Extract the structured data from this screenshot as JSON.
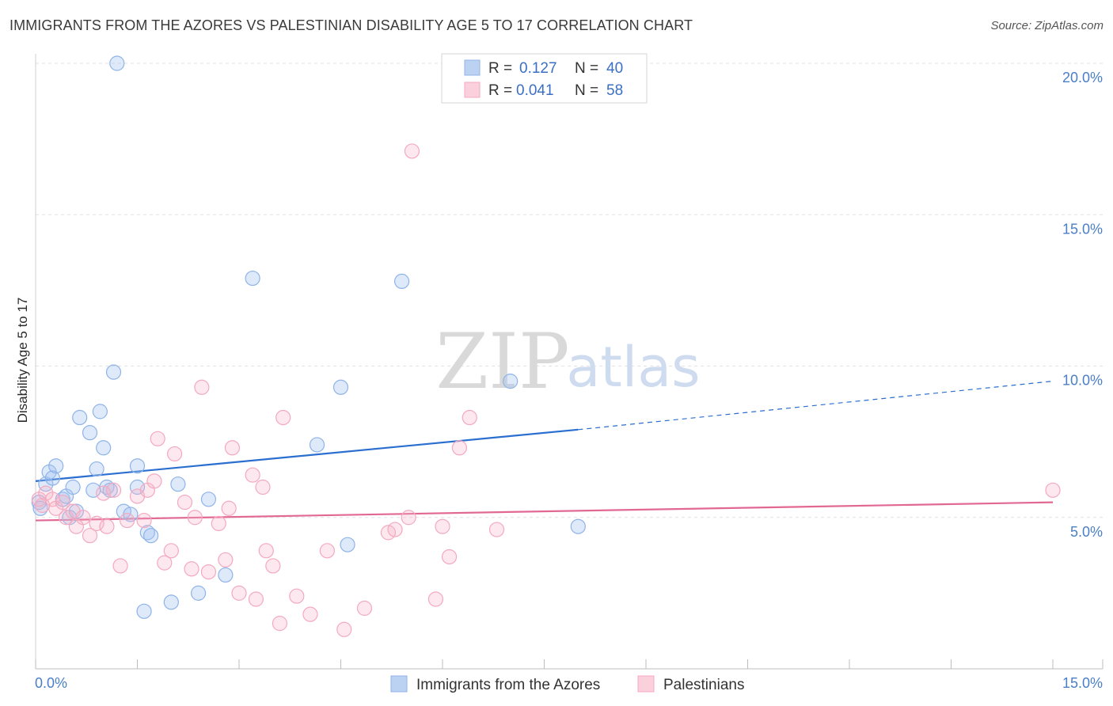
{
  "title": "IMMIGRANTS FROM THE AZORES VS PALESTINIAN DISABILITY AGE 5 TO 17 CORRELATION CHART",
  "source": "Source: ZipAtlas.com",
  "watermark": {
    "zip": "ZIP",
    "atlas": "atlas"
  },
  "colors": {
    "blue": "#8fb3e8",
    "blue_line": "#2a6ed0",
    "pink": "#f4a9c0",
    "pink_line": "#e26894",
    "tick": "#4a7fc6"
  },
  "chart_data": {
    "type": "scatter",
    "title": "IMMIGRANTS FROM THE AZORES VS PALESTINIAN DISABILITY AGE 5 TO 17 CORRELATION CHART",
    "xlabel": "",
    "ylabel": "Disability Age 5 to 17",
    "xlim": [
      0,
      15
    ],
    "ylim": [
      0,
      20
    ],
    "x_tick_labels": [
      "0.0%",
      "15.0%"
    ],
    "y_ticks": [
      5,
      10,
      15,
      20
    ],
    "y_tick_labels": [
      "5.0%",
      "10.0%",
      "15.0%",
      "20.0%"
    ],
    "legend": {
      "r_label": "R =",
      "n_label": "N =",
      "rows": [
        {
          "r": "0.127",
          "n": "40",
          "color": "blue"
        },
        {
          "r": "0.041",
          "n": "58",
          "color": "pink"
        }
      ]
    },
    "series": [
      {
        "name": "Immigrants from the Azores",
        "color": "blue",
        "trend": {
          "x0": 0,
          "y0": 6.2,
          "x1": 8.0,
          "y1": 7.9,
          "dash_to_x": 15,
          "dash_to_y": 9.5
        },
        "points": [
          [
            0.05,
            5.5
          ],
          [
            0.07,
            5.3
          ],
          [
            0.15,
            6.1
          ],
          [
            0.2,
            6.5
          ],
          [
            0.25,
            6.3
          ],
          [
            0.3,
            6.7
          ],
          [
            0.4,
            5.6
          ],
          [
            0.45,
            5.7
          ],
          [
            0.5,
            5.0
          ],
          [
            0.55,
            6.0
          ],
          [
            0.6,
            5.2
          ],
          [
            0.65,
            8.3
          ],
          [
            0.8,
            7.8
          ],
          [
            0.85,
            5.9
          ],
          [
            0.9,
            6.6
          ],
          [
            0.95,
            8.5
          ],
          [
            1.0,
            7.3
          ],
          [
            1.05,
            6.0
          ],
          [
            1.1,
            5.9
          ],
          [
            1.15,
            9.8
          ],
          [
            1.2,
            20.0
          ],
          [
            1.3,
            5.2
          ],
          [
            1.4,
            5.1
          ],
          [
            1.5,
            6.7
          ],
          [
            1.5,
            6.0
          ],
          [
            1.6,
            1.9
          ],
          [
            1.65,
            4.5
          ],
          [
            1.7,
            4.4
          ],
          [
            2.0,
            2.2
          ],
          [
            2.1,
            6.1
          ],
          [
            2.4,
            2.5
          ],
          [
            2.55,
            5.6
          ],
          [
            2.8,
            3.1
          ],
          [
            3.2,
            12.9
          ],
          [
            4.15,
            7.4
          ],
          [
            4.5,
            9.3
          ],
          [
            4.6,
            4.1
          ],
          [
            5.4,
            12.8
          ],
          [
            7.0,
            9.5
          ],
          [
            8.0,
            4.7
          ]
        ]
      },
      {
        "name": "Palestinians",
        "color": "pink",
        "trend": {
          "x0": 0,
          "y0": 4.9,
          "x1": 15,
          "y1": 5.5
        },
        "points": [
          [
            0.05,
            5.6
          ],
          [
            0.1,
            5.4
          ],
          [
            0.15,
            5.8
          ],
          [
            0.25,
            5.6
          ],
          [
            0.3,
            5.3
          ],
          [
            0.4,
            5.5
          ],
          [
            0.45,
            5.0
          ],
          [
            0.55,
            5.2
          ],
          [
            0.6,
            4.7
          ],
          [
            0.7,
            5.0
          ],
          [
            0.8,
            4.4
          ],
          [
            0.9,
            4.8
          ],
          [
            1.0,
            5.8
          ],
          [
            1.05,
            4.7
          ],
          [
            1.15,
            5.9
          ],
          [
            1.25,
            3.4
          ],
          [
            1.35,
            4.9
          ],
          [
            1.5,
            5.7
          ],
          [
            1.6,
            4.9
          ],
          [
            1.65,
            5.9
          ],
          [
            1.75,
            6.2
          ],
          [
            1.8,
            7.6
          ],
          [
            1.9,
            3.5
          ],
          [
            2.0,
            3.9
          ],
          [
            2.05,
            7.1
          ],
          [
            2.2,
            5.5
          ],
          [
            2.3,
            3.3
          ],
          [
            2.35,
            5.0
          ],
          [
            2.45,
            9.3
          ],
          [
            2.55,
            3.2
          ],
          [
            2.7,
            4.8
          ],
          [
            2.8,
            3.6
          ],
          [
            2.85,
            5.3
          ],
          [
            2.9,
            7.3
          ],
          [
            3.0,
            2.5
          ],
          [
            3.2,
            6.4
          ],
          [
            3.25,
            2.3
          ],
          [
            3.35,
            6.0
          ],
          [
            3.4,
            3.9
          ],
          [
            3.5,
            3.4
          ],
          [
            3.6,
            1.5
          ],
          [
            3.65,
            8.3
          ],
          [
            3.85,
            2.4
          ],
          [
            4.05,
            1.8
          ],
          [
            4.3,
            3.9
          ],
          [
            4.55,
            1.3
          ],
          [
            4.85,
            2.0
          ],
          [
            5.2,
            4.5
          ],
          [
            5.3,
            4.6
          ],
          [
            5.5,
            5.0
          ],
          [
            5.55,
            17.1
          ],
          [
            5.9,
            2.3
          ],
          [
            6.0,
            4.7
          ],
          [
            6.1,
            3.7
          ],
          [
            6.25,
            7.3
          ],
          [
            6.4,
            8.3
          ],
          [
            6.8,
            4.6
          ],
          [
            15.0,
            5.9
          ]
        ]
      }
    ]
  },
  "bottom_legend": [
    "Immigrants from the Azores",
    "Palestinians"
  ]
}
